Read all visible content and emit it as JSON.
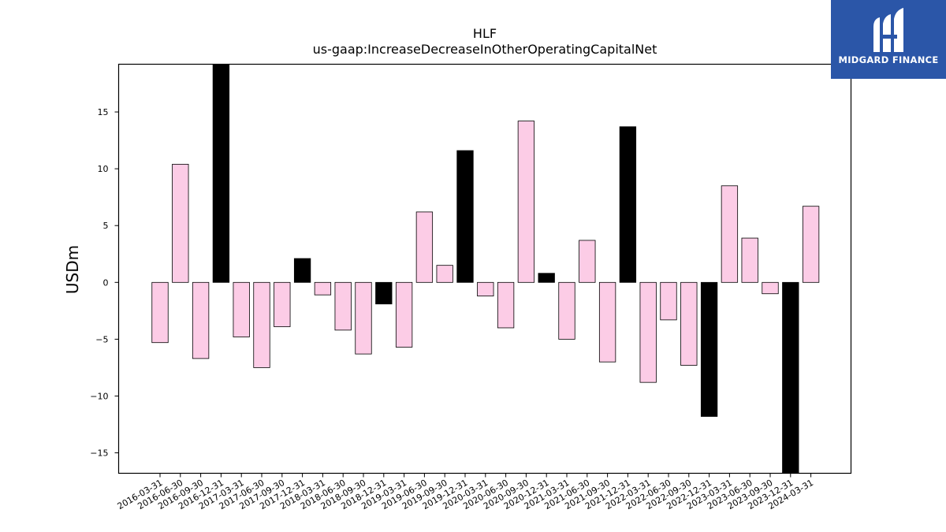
{
  "brand": {
    "name": "MIDGARD FINANCE",
    "logo_icon": "midgard-mark-icon",
    "background": "#2b56a8"
  },
  "chart_data": {
    "type": "bar",
    "title": "HLF",
    "subtitle": "us-gaap:IncreaseDecreaseInOtherOperatingCapitalNet",
    "xlabel": "",
    "ylabel": "USDm",
    "ylim": [
      -16.8,
      19.2
    ],
    "yticks": [
      -15,
      -10,
      -5,
      0,
      5,
      10,
      15
    ],
    "grid": false,
    "legend": "none",
    "colors": {
      "quarter": "#fccce6",
      "year_end": "#000000",
      "edge": "#000000"
    },
    "categories": [
      "2016-03-31",
      "2016-06-30",
      "2016-09-30",
      "2016-12-31",
      "2017-03-31",
      "2017-06-30",
      "2017-09-30",
      "2017-12-31",
      "2018-03-31",
      "2018-06-30",
      "2018-09-30",
      "2018-12-31",
      "2019-03-31",
      "2019-06-30",
      "2019-09-30",
      "2019-12-31",
      "2020-03-31",
      "2020-06-30",
      "2020-09-30",
      "2020-12-31",
      "2021-03-31",
      "2021-06-30",
      "2021-09-30",
      "2021-12-31",
      "2022-03-31",
      "2022-06-30",
      "2022-09-30",
      "2022-12-31",
      "2023-03-31",
      "2023-06-30",
      "2023-09-30",
      "2023-12-31",
      "2024-03-31"
    ],
    "values": [
      -5.3,
      10.4,
      -6.7,
      19.5,
      -4.8,
      -7.5,
      -3.9,
      2.1,
      -1.1,
      -4.2,
      -6.3,
      -1.9,
      -5.7,
      6.2,
      1.5,
      11.6,
      -1.2,
      -4.0,
      14.2,
      0.8,
      -5.0,
      3.7,
      -7.0,
      13.7,
      -8.8,
      -3.3,
      -7.3,
      -11.8,
      8.5,
      3.9,
      -1.0,
      -17.0,
      6.7
    ]
  }
}
